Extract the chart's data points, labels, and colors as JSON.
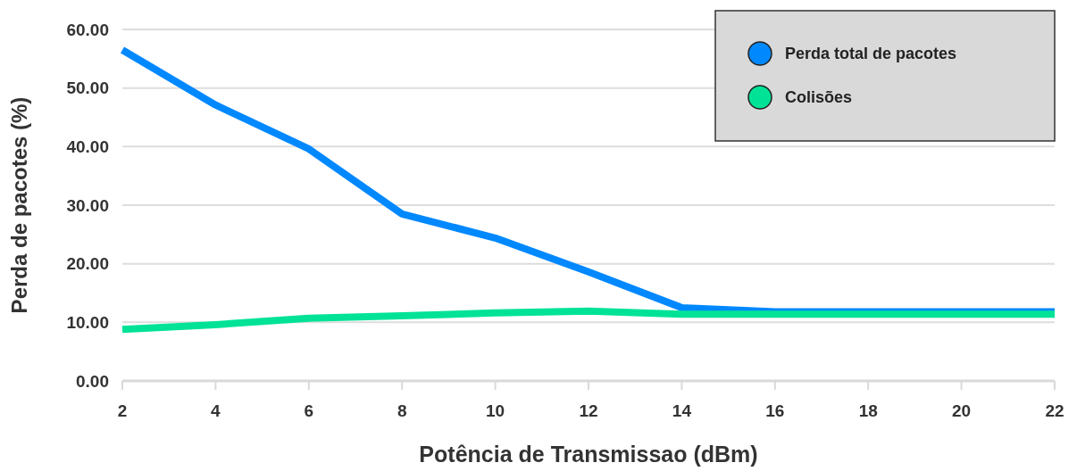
{
  "chart_data": {
    "type": "line",
    "xlabel": "Potência de Transmissao (dBm)",
    "ylabel": "Perda de pacotes (%)",
    "x": [
      2,
      4,
      6,
      8,
      10,
      12,
      14,
      16,
      18,
      20,
      22
    ],
    "series": [
      {
        "name": "Perda total de pacotes",
        "color": "#0088ff",
        "values": [
          56.5,
          47.1,
          39.6,
          28.5,
          24.4,
          18.6,
          12.5,
          11.8,
          11.8,
          11.8,
          11.8
        ]
      },
      {
        "name": "Colisões",
        "color": "#00e396",
        "values": [
          8.8,
          9.6,
          10.7,
          11.1,
          11.6,
          11.9,
          11.4,
          11.4,
          11.4,
          11.4,
          11.4
        ]
      }
    ],
    "xlim": [
      2,
      22
    ],
    "xticks": [
      2,
      4,
      6,
      8,
      10,
      12,
      14,
      16,
      18,
      20,
      22
    ],
    "ylim": [
      0,
      60
    ],
    "yticks": [
      {
        "value": 0,
        "label": "0.00"
      },
      {
        "value": 10,
        "label": "10.00"
      },
      {
        "value": 20,
        "label": "20.00"
      },
      {
        "value": 30,
        "label": "30.00"
      },
      {
        "value": 40,
        "label": "40.00"
      },
      {
        "value": 50,
        "label": "50.00"
      },
      {
        "value": 60,
        "label": "60.00"
      }
    ],
    "grid": "y",
    "legend": "top right",
    "line_style": "solid"
  }
}
